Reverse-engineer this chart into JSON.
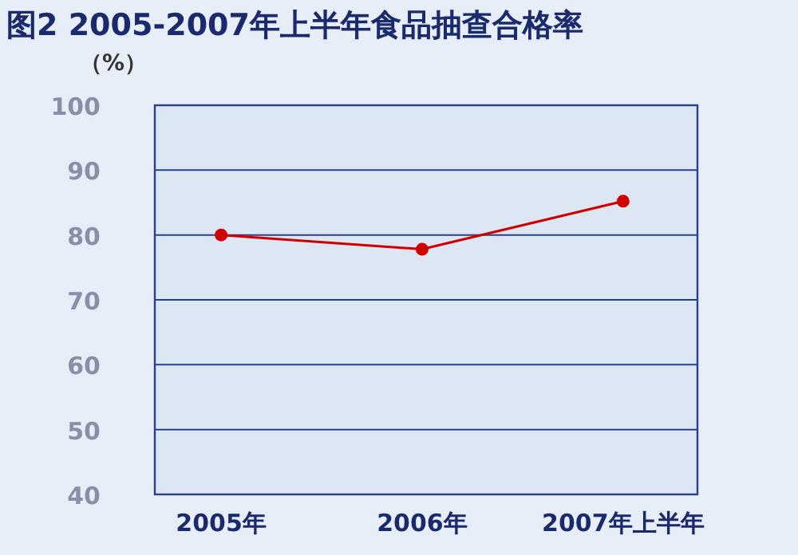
{
  "chart_data": {
    "type": "line",
    "title": "图2 2005-2007年上半年食品抽查合格率",
    "ylabel": "（%）",
    "categories": [
      "2005年",
      "2006年",
      "2007年上半年"
    ],
    "series": [
      {
        "color": "#d00000",
        "values": [
          80,
          77.8,
          85.2
        ]
      }
    ],
    "ylim": [
      40,
      100
    ],
    "yticks": [
      40,
      50,
      60,
      70,
      80,
      90,
      100
    ],
    "grid": "y",
    "marker": "circle"
  }
}
